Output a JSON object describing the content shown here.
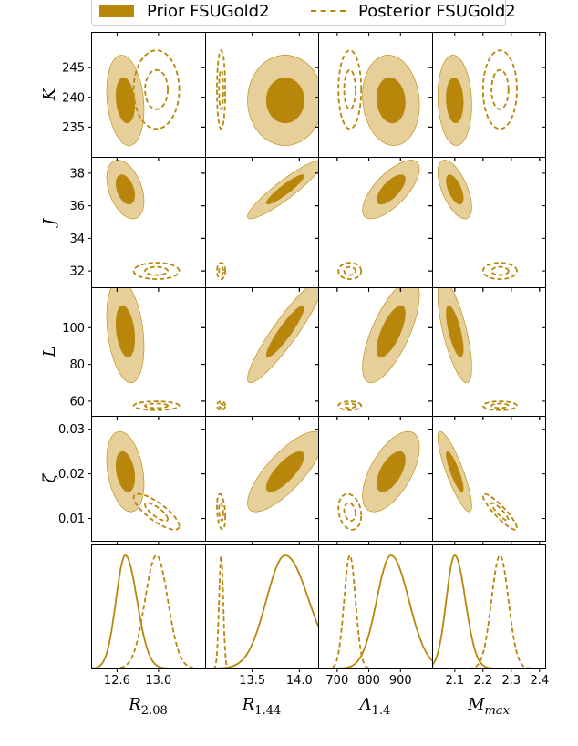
{
  "colors": {
    "dark": "#b8860b",
    "light": "#e6cf98",
    "edge": "#b8860b"
  },
  "legend": {
    "prior_label": "Prior FSUGold2",
    "posterior_label": "Posterior FSUGold2"
  },
  "chart_data": {
    "type": "corner",
    "columns": [
      {
        "label": "R",
        "sub": "2.08",
        "range": [
          12.35,
          13.45
        ],
        "ticks": [
          "12.6",
          "13.0"
        ],
        "tick_values": [
          12.6,
          13.0
        ]
      },
      {
        "label": "R",
        "sub": "1.44",
        "range": [
          13.0,
          14.2
        ],
        "ticks": [
          "13.5",
          "14.0"
        ],
        "tick_values": [
          13.5,
          14.0
        ]
      },
      {
        "label": "Λ",
        "sub": "1.4",
        "range": [
          640,
          1000
        ],
        "ticks": [
          "700",
          "800",
          "900"
        ],
        "tick_values": [
          700,
          800,
          900
        ]
      },
      {
        "label": "M",
        "sub": "max",
        "range": [
          2.02,
          2.42
        ],
        "ticks": [
          "2.1",
          "2.2",
          "2.3",
          "2.4"
        ],
        "tick_values": [
          2.1,
          2.2,
          2.3,
          2.4
        ]
      }
    ],
    "rows": [
      {
        "label": "K",
        "range": [
          230,
          251
        ],
        "ticks": [
          "235",
          "240",
          "245"
        ],
        "tick_values": [
          235,
          240,
          245
        ]
      },
      {
        "label": "J",
        "range": [
          31,
          39
        ],
        "ticks": [
          "32",
          "34",
          "36",
          "38"
        ],
        "tick_values": [
          32,
          34,
          36,
          38
        ]
      },
      {
        "label": "L",
        "range": [
          52,
          122
        ],
        "ticks": [
          "60",
          "80",
          "100"
        ],
        "tick_values": [
          60,
          80,
          100
        ]
      },
      {
        "label": "ζ",
        "range": [
          0.005,
          0.033
        ],
        "ticks": [
          "0.01",
          "0.02",
          "0.03"
        ],
        "tick_values": [
          0.01,
          0.02,
          0.03
        ]
      }
    ],
    "prior": {
      "name": "Prior FSUGold2",
      "means": {
        "R2.08": 12.68,
        "R1.44": 13.85,
        "L1.4": 870,
        "Mmax": 2.1
      },
      "sds": {
        "R2.08": 0.09,
        "R1.44": 0.2,
        "L1.4": 45,
        "Mmax": 0.03
      },
      "params": [
        {
          "name": "K",
          "mean": 239.5,
          "sd": 3.8
        },
        {
          "name": "J",
          "mean": 37.0,
          "sd": 0.9
        },
        {
          "name": "L",
          "mean": 98,
          "sd": 14
        },
        {
          "name": "ζ",
          "mean": 0.0205,
          "sd": 0.0045
        }
      ],
      "corr": [
        [
          -0.2,
          0.0,
          -0.1,
          -0.1
        ],
        [
          -0.4,
          0.92,
          0.7,
          -0.6
        ],
        [
          -0.3,
          0.92,
          0.7,
          -0.7
        ],
        [
          -0.3,
          0.78,
          0.6,
          -0.85
        ]
      ]
    },
    "posterior": {
      "name": "Posterior FSUGold2",
      "means": {
        "R2.08": 12.98,
        "R1.44": 13.17,
        "L1.4": 740,
        "Mmax": 2.26
      },
      "sds": {
        "R2.08": 0.11,
        "R1.44": 0.022,
        "L1.4": 18,
        "Mmax": 0.03
      },
      "params": [
        {
          "name": "K",
          "mean": 241.3,
          "sd": 3.3
        },
        {
          "name": "J",
          "mean": 32.0,
          "sd": 0.25
        },
        {
          "name": "L",
          "mean": 57.5,
          "sd": 1.2
        },
        {
          "name": "ζ",
          "mean": 0.0115,
          "sd": 0.002
        }
      ],
      "corr": [
        [
          0.0,
          0.0,
          0.0,
          0.0
        ],
        [
          0.0,
          0.0,
          0.0,
          0.0
        ],
        [
          0.0,
          0.0,
          0.0,
          0.0
        ],
        [
          -0.8,
          -0.3,
          -0.2,
          -0.9
        ]
      ]
    },
    "levels": {
      "inner_sigma": 1.0,
      "outer_sigma": 2.0
    }
  }
}
